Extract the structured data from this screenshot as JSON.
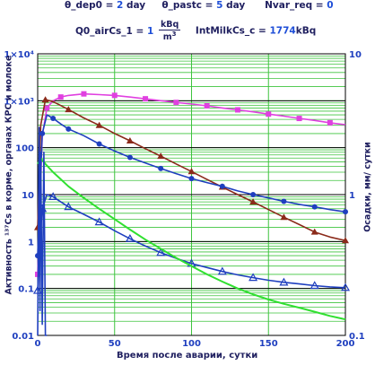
{
  "header": {
    "line1": [
      {
        "name": "θ_dep0",
        "value": "2",
        "unit": "day"
      },
      {
        "name": "θ_pastc",
        "value": "5",
        "unit": "day"
      },
      {
        "name": "Nvar_req",
        "value": "0",
        "unit": ""
      }
    ],
    "q0_name": "Q0_airCs_1",
    "q0_value": "1",
    "q0_unit_num": "kBq",
    "q0_unit_den": "m",
    "q0_unit_exp": "3",
    "intmilk_name": "IntMilkCs_c",
    "intmilk_value": "1774",
    "intmilk_unit": "kBq"
  },
  "chart_data": {
    "type": "line",
    "xlabel": "Время после аварии, сутки",
    "ylabel_left": "Активность ¹³⁷Cs в корме, органах КРС и молоке",
    "ylabel_right": "Осадки, мм/ сутки",
    "xlim": [
      0,
      200
    ],
    "ylim_left": [
      0.01,
      10000
    ],
    "ylim_right": [
      0.1,
      10
    ],
    "y_scale": "log",
    "x_ticks": [
      0,
      50,
      100,
      150,
      200
    ],
    "y_left_ticks": [
      "0.01",
      "0.1",
      "1",
      "10",
      "100",
      "1×10³",
      "1×10⁴"
    ],
    "y_right_ticks": [
      "0.1",
      "1",
      "10"
    ],
    "grid": true,
    "series": [
      {
        "color": "#e040e0",
        "marker": "square",
        "x": [
          0,
          3,
          6,
          10,
          15,
          20,
          30,
          40,
          50,
          60,
          70,
          80,
          90,
          100,
          110,
          120,
          130,
          140,
          150,
          160,
          170,
          180,
          190,
          200
        ],
        "y": [
          0.2,
          180,
          700,
          1000,
          1200,
          1300,
          1400,
          1350,
          1300,
          1200,
          1100,
          1000,
          920,
          850,
          780,
          700,
          640,
          580,
          520,
          470,
          420,
          380,
          340,
          310
        ]
      },
      {
        "color": "#8b2a1a",
        "marker": "triangle-filled",
        "x": [
          0,
          2,
          5,
          10,
          20,
          30,
          40,
          50,
          60,
          70,
          80,
          90,
          100,
          110,
          120,
          130,
          140,
          150,
          160,
          170,
          180,
          190,
          200
        ],
        "y": [
          2,
          300,
          1050,
          960,
          650,
          430,
          300,
          200,
          140,
          95,
          66,
          45,
          31,
          21,
          14.5,
          10,
          7,
          4.8,
          3.3,
          2.3,
          1.6,
          1.25,
          1.05
        ]
      },
      {
        "color": "#1f3fbf",
        "marker": "circle",
        "x": [
          0,
          1,
          3,
          6,
          10,
          15,
          20,
          30,
          40,
          50,
          60,
          70,
          80,
          90,
          100,
          110,
          120,
          130,
          140,
          150,
          160,
          170,
          180,
          190,
          200
        ],
        "y": [
          0.5,
          5,
          200,
          500,
          420,
          320,
          250,
          180,
          120,
          85,
          62,
          47,
          36,
          28,
          22,
          18,
          15,
          12,
          10,
          8.5,
          7.2,
          6.2,
          5.5,
          4.8,
          4.3
        ]
      },
      {
        "color": "#1f3fbf",
        "marker": "triangle-open",
        "x": [
          0,
          1,
          3,
          6,
          10,
          15,
          20,
          30,
          40,
          50,
          60,
          70,
          80,
          90,
          100,
          110,
          120,
          130,
          140,
          150,
          160,
          170,
          180,
          190,
          200
        ],
        "y": [
          0.09,
          0.5,
          5,
          10,
          9,
          7,
          5.5,
          3.8,
          2.6,
          1.7,
          1.15,
          0.8,
          0.58,
          0.44,
          0.34,
          0.28,
          0.23,
          0.195,
          0.17,
          0.15,
          0.135,
          0.125,
          0.115,
          0.108,
          0.104
        ]
      },
      {
        "color": "#30e030",
        "marker": "none",
        "x": [
          0,
          2,
          5,
          10,
          20,
          30,
          40,
          50,
          60,
          70,
          80,
          90,
          100,
          110,
          120,
          130,
          140,
          150,
          160,
          170,
          180,
          190,
          200
        ],
        "y": [
          45,
          60,
          45,
          30,
          15,
          8.5,
          5,
          3,
          1.8,
          1.1,
          0.7,
          0.45,
          0.3,
          0.2,
          0.14,
          0.1,
          0.075,
          0.058,
          0.047,
          0.039,
          0.032,
          0.026,
          0.022
        ]
      },
      {
        "color": "#1f3fbf",
        "marker": "none",
        "axis": "right",
        "x": [
          0,
          1,
          1.5,
          2,
          3,
          4,
          5,
          6
        ],
        "y": [
          0.1,
          3,
          0.15,
          2,
          0.12,
          2,
          0.1,
          0.1
        ]
      }
    ]
  }
}
